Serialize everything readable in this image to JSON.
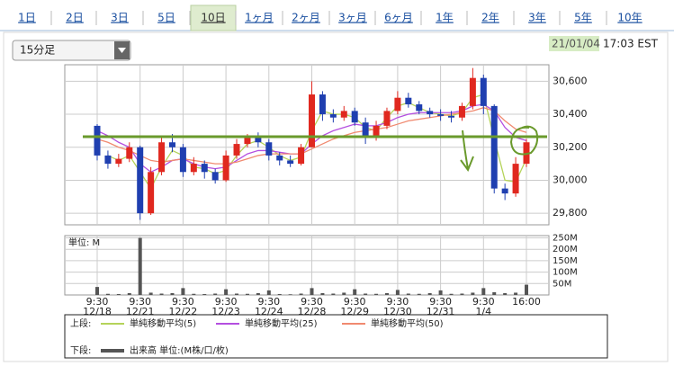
{
  "tabs": [
    "1日",
    "2日",
    "3日",
    "5日",
    "10日",
    "1ヶ月",
    "2ヶ月",
    "3ヶ月",
    "6ヶ月",
    "1年",
    "2年",
    "3年",
    "5年",
    "10年"
  ],
  "selected_tab_index": 4,
  "dropdown": "15分足",
  "timestamp": {
    "date": "21/01/04",
    "time": "17:03 EST"
  },
  "legend": {
    "upper_label": "上段:",
    "lower_label": "下段:"
  },
  "chart_data": [
    {
      "type": "candlestick",
      "categories": [
        [
          "9:30",
          "12/18"
        ],
        null,
        null,
        null,
        [
          "9:30",
          "12/21"
        ],
        null,
        null,
        null,
        [
          "9:30",
          "12/22"
        ],
        null,
        null,
        null,
        [
          "9:30",
          "12/23"
        ],
        null,
        null,
        null,
        [
          "9:30",
          "12/24"
        ],
        null,
        null,
        null,
        [
          "9:30",
          "12/28"
        ],
        null,
        null,
        null,
        [
          "9:30",
          "12/29"
        ],
        null,
        null,
        null,
        [
          "9:30",
          "12/30"
        ],
        null,
        null,
        null,
        [
          "9:30",
          "12/31"
        ],
        null,
        null,
        null,
        [
          "9:30",
          "1/4"
        ],
        null,
        null,
        null,
        [
          "16:00"
        ]
      ],
      "open": [
        30330,
        30150,
        30100,
        30130,
        30200,
        29800,
        30050,
        30230,
        30200,
        30050,
        30100,
        30050,
        30000,
        30150,
        30220,
        30260,
        30230,
        30150,
        30120,
        30100,
        30200,
        30520,
        30400,
        30380,
        30420,
        30350,
        30260,
        30330,
        30420,
        30500,
        30460,
        30420,
        30400,
        30390,
        30380,
        30450,
        30620,
        30450,
        29950,
        29920,
        30100
      ],
      "high": [
        30340,
        30180,
        30160,
        30230,
        30210,
        30080,
        30260,
        30280,
        30220,
        30140,
        30120,
        30070,
        30180,
        30250,
        30280,
        30290,
        30250,
        30170,
        30150,
        30220,
        30600,
        30540,
        30430,
        30450,
        30440,
        30380,
        30360,
        30440,
        30540,
        30530,
        30480,
        30440,
        30430,
        30420,
        30470,
        30680,
        30640,
        30460,
        29980,
        30140,
        30250
      ],
      "low": [
        30120,
        30070,
        30080,
        30110,
        29760,
        29790,
        30030,
        30170,
        30020,
        30030,
        30010,
        29980,
        29990,
        30130,
        30200,
        30200,
        30120,
        30090,
        30080,
        30090,
        30200,
        30360,
        30350,
        30360,
        30330,
        30220,
        30240,
        30310,
        30400,
        30440,
        30400,
        30380,
        30360,
        30350,
        30360,
        30430,
        30400,
        29920,
        29880,
        29900,
        30080
      ],
      "close": [
        30150,
        30100,
        30130,
        30200,
        29800,
        30050,
        30230,
        30200,
        30050,
        30100,
        30050,
        30000,
        30150,
        30220,
        30260,
        30230,
        30150,
        30120,
        30100,
        30200,
        30520,
        30400,
        30380,
        30420,
        30350,
        30260,
        30330,
        30420,
        30500,
        30460,
        30420,
        30400,
        30390,
        30380,
        30450,
        30620,
        30450,
        29950,
        29920,
        30100,
        30230
      ],
      "up_color": "#e0281f",
      "down_color": "#1f3fb0",
      "series": [
        {
          "name": "単純移動平均(5)",
          "color": "#b5d35a",
          "values": [
            null,
            30150,
            30120,
            30150,
            30050,
            29950,
            30080,
            30180,
            30150,
            30080,
            30070,
            30040,
            30060,
            30150,
            30220,
            30240,
            30200,
            30150,
            30120,
            30140,
            30300,
            30420,
            30400,
            30400,
            30380,
            30320,
            30300,
            30380,
            30450,
            30470,
            30440,
            30410,
            30400,
            30390,
            30410,
            30500,
            30520,
            30250,
            30000,
            29990,
            30130
          ]
        },
        {
          "name": "単純移動平均(25)",
          "color": "#b44fe0",
          "values": [
            30300,
            30270,
            30230,
            30200,
            30100,
            30050,
            30080,
            30120,
            30130,
            30100,
            30080,
            30070,
            30080,
            30120,
            30160,
            30180,
            30180,
            30170,
            30160,
            30160,
            30220,
            30270,
            30300,
            30320,
            30340,
            30330,
            30330,
            30350,
            30380,
            30400,
            30410,
            30410,
            30410,
            30410,
            30420,
            30450,
            30460,
            30420,
            30320,
            30260,
            30240
          ]
        },
        {
          "name": "単純移動平均(50)",
          "color": "#f08a70",
          "values": [
            30250,
            30230,
            30200,
            30180,
            30150,
            30120,
            30110,
            30120,
            30130,
            30120,
            30110,
            30100,
            30100,
            30110,
            30130,
            30150,
            30160,
            30160,
            30160,
            30160,
            30190,
            30220,
            30250,
            30270,
            30290,
            30300,
            30310,
            30320,
            30340,
            30360,
            30370,
            30380,
            30390,
            30400,
            30410,
            30420,
            30440,
            30420,
            30360,
            30310,
            30290
          ]
        }
      ],
      "ylim": [
        29730,
        30700
      ],
      "yticks": [
        {
          "value": 29800,
          "label": "29,800"
        },
        {
          "value": 30000,
          "label": "30,000"
        },
        {
          "value": 30200,
          "label": "30,200"
        },
        {
          "value": 30400,
          "label": "30,400"
        },
        {
          "value": 30600,
          "label": "30,600"
        }
      ],
      "grid": true
    },
    {
      "type": "bar",
      "unit_label": "単位: M",
      "series": [
        {
          "name": "出来高 単位:(M株/口/枚)",
          "color": "#555555",
          "values": [
            35,
            5,
            4,
            8,
            250,
            10,
            6,
            8,
            30,
            5,
            4,
            6,
            25,
            6,
            5,
            8,
            20,
            4,
            3,
            6,
            30,
            8,
            6,
            10,
            25,
            6,
            5,
            8,
            22,
            6,
            5,
            8,
            20,
            5,
            6,
            10,
            30,
            12,
            8,
            10,
            45
          ]
        }
      ],
      "ylim": [
        0,
        260
      ],
      "yticks": [
        {
          "value": 50,
          "label": "50M"
        },
        {
          "value": 100,
          "label": "100M"
        },
        {
          "value": 150,
          "label": "150M"
        },
        {
          "value": 200,
          "label": "200M"
        },
        {
          "value": 250,
          "label": "250M"
        }
      ],
      "grid": true
    }
  ]
}
